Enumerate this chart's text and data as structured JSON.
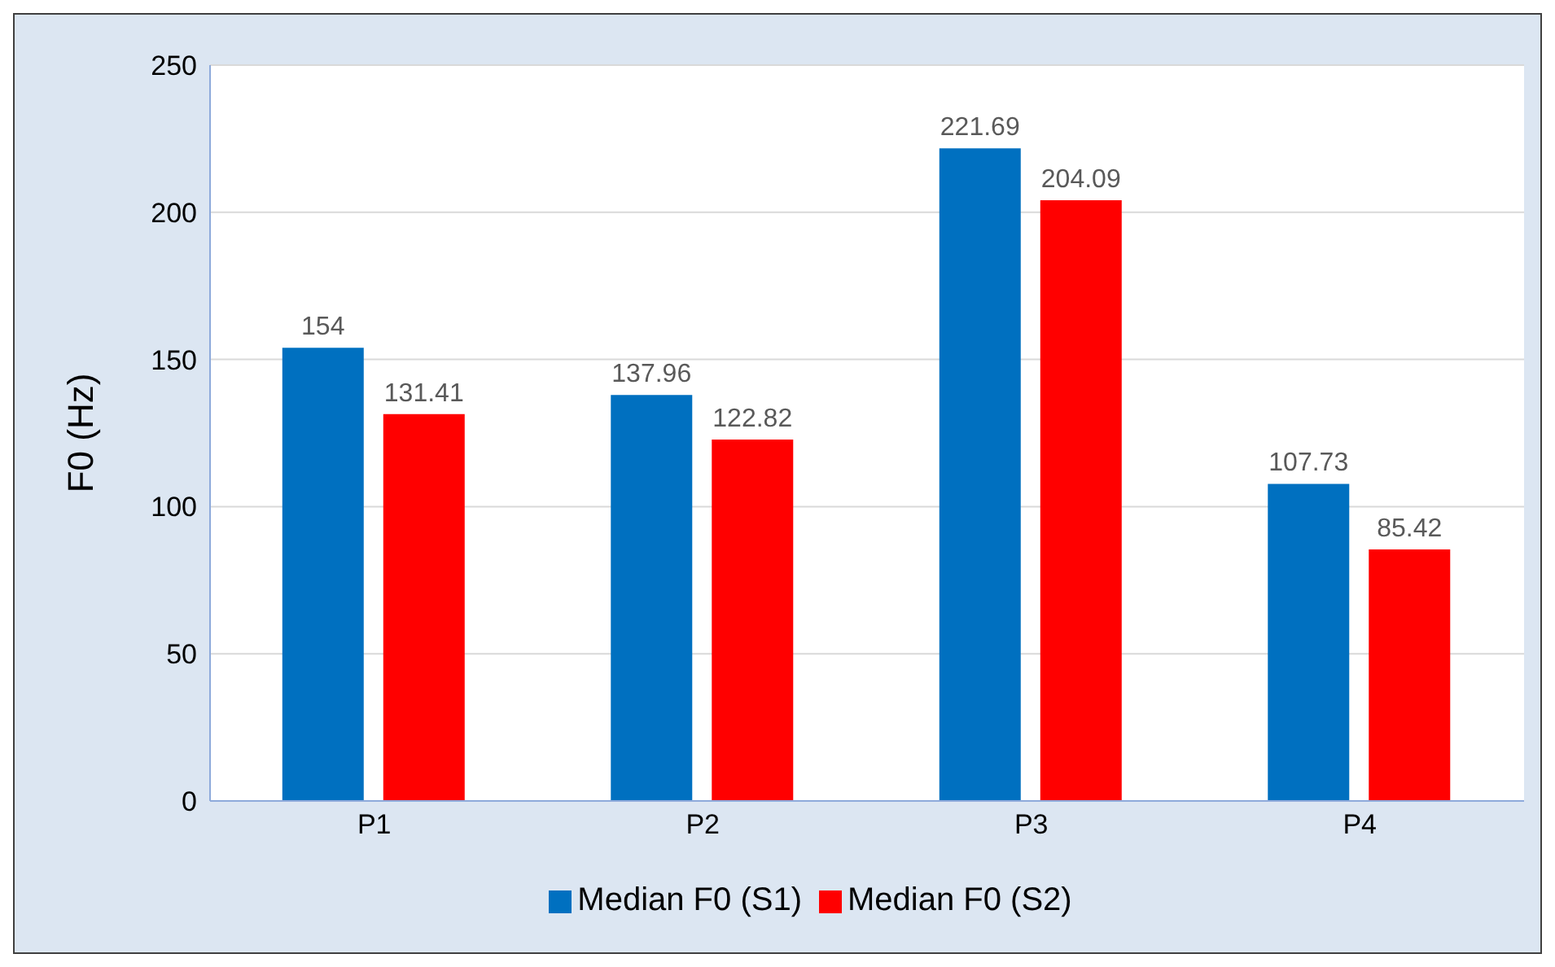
{
  "chart_data": {
    "type": "bar",
    "ylabel": "F0 (Hz)",
    "categories": [
      "P1",
      "P2",
      "P3",
      "P4"
    ],
    "series": [
      {
        "name": "Median F0 (S1)",
        "color": "#0070c0",
        "values": [
          154,
          137.96,
          221.69,
          107.73
        ]
      },
      {
        "name": "Median F0 (S2)",
        "color": "#ff0000",
        "values": [
          131.41,
          122.82,
          204.09,
          85.42
        ]
      }
    ],
    "ylim": [
      0,
      250
    ],
    "yticks": [
      0,
      50,
      100,
      150,
      200,
      250
    ],
    "grid": "y",
    "legend": "bottom",
    "data_labels": true
  }
}
